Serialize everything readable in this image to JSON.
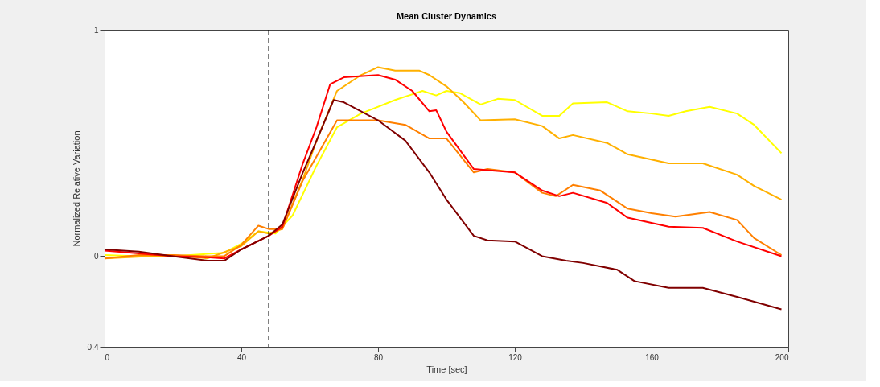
{
  "chart_data": {
    "type": "line",
    "title": "Mean Cluster Dynamics",
    "xlabel": "Time [sec]",
    "ylabel": "Normalized Relative Variation",
    "xlim": [
      0,
      200
    ],
    "xticks": [
      0,
      40,
      80,
      120,
      160,
      200
    ],
    "ylim": [
      -0.4,
      1
    ],
    "yticks": [
      -0.4,
      0,
      1
    ],
    "grid": false,
    "legend": false,
    "marker": "none",
    "line_style": "solid",
    "ref_lines": [
      {
        "axis": "x",
        "value": 48,
        "label": null,
        "color": "#000000",
        "line_style": "dashed"
      }
    ],
    "series": [
      {
        "color": "#ffff00",
        "x": [
          0,
          10,
          20,
          30,
          35,
          40,
          45,
          50,
          55,
          62,
          68,
          75,
          85,
          93,
          97,
          100,
          104,
          110,
          115,
          120,
          128,
          133,
          137,
          147,
          153,
          160,
          165,
          170,
          177,
          185,
          190,
          198
        ],
        "values": [
          0.005,
          0,
          0,
          0.01,
          0.015,
          0.055,
          0.11,
          0.1,
          0.18,
          0.4,
          0.57,
          0.63,
          0.69,
          0.73,
          0.71,
          0.73,
          0.72,
          0.67,
          0.695,
          0.69,
          0.62,
          0.62,
          0.675,
          0.68,
          0.64,
          0.63,
          0.62,
          0.64,
          0.66,
          0.63,
          0.58,
          0.455
        ]
      },
      {
        "color": "#ffb000",
        "x": [
          0,
          20,
          30,
          40,
          45,
          48,
          52,
          58,
          62,
          68,
          75,
          80,
          85,
          92,
          95,
          100,
          105,
          110,
          120,
          128,
          133,
          137,
          147,
          153,
          165,
          175,
          185,
          190,
          198
        ],
        "values": [
          -0.01,
          0.005,
          -0.01,
          0.045,
          0.11,
          0.1,
          0.12,
          0.34,
          0.51,
          0.73,
          0.8,
          0.835,
          0.82,
          0.82,
          0.8,
          0.75,
          0.68,
          0.6,
          0.605,
          0.575,
          0.52,
          0.535,
          0.5,
          0.45,
          0.41,
          0.41,
          0.36,
          0.31,
          0.25
        ]
      },
      {
        "color": "#ff8000",
        "x": [
          0,
          10,
          20,
          30,
          35,
          40,
          45,
          48,
          52,
          58,
          62,
          68,
          80,
          88,
          95,
          100,
          108,
          112,
          120,
          128,
          132,
          137,
          145,
          153,
          160,
          167,
          177,
          185,
          190,
          198
        ],
        "values": [
          -0.01,
          0.005,
          0.005,
          0,
          0,
          0.05,
          0.135,
          0.12,
          0.12,
          0.335,
          0.44,
          0.6,
          0.6,
          0.58,
          0.52,
          0.52,
          0.37,
          0.385,
          0.37,
          0.28,
          0.265,
          0.315,
          0.29,
          0.21,
          0.19,
          0.175,
          0.195,
          0.16,
          0.08,
          0.005
        ]
      },
      {
        "color": "#ff0000",
        "x": [
          0,
          20,
          30,
          35,
          40,
          48,
          52,
          58,
          62,
          66,
          70,
          80,
          85,
          90,
          95,
          97,
          100,
          108,
          112,
          120,
          128,
          133,
          137,
          147,
          153,
          165,
          175,
          185,
          198
        ],
        "values": [
          0.025,
          0,
          -0.005,
          -0.01,
          0.03,
          0.09,
          0.13,
          0.41,
          0.57,
          0.76,
          0.79,
          0.8,
          0.78,
          0.73,
          0.64,
          0.645,
          0.55,
          0.385,
          0.38,
          0.37,
          0.29,
          0.265,
          0.28,
          0.235,
          0.17,
          0.13,
          0.125,
          0.065,
          0
        ]
      },
      {
        "color": "#800000",
        "x": [
          0,
          10,
          20,
          30,
          35,
          40,
          48,
          52,
          58,
          62,
          67,
          70,
          80,
          88,
          95,
          100,
          108,
          112,
          120,
          128,
          135,
          140,
          150,
          155,
          165,
          175,
          185,
          198
        ],
        "values": [
          0.03,
          0.02,
          0,
          -0.02,
          -0.02,
          0.03,
          0.09,
          0.14,
          0.37,
          0.51,
          0.69,
          0.68,
          0.6,
          0.51,
          0.37,
          0.25,
          0.09,
          0.07,
          0.065,
          0,
          -0.02,
          -0.03,
          -0.06,
          -0.11,
          -0.14,
          -0.14,
          -0.18,
          -0.235
        ]
      }
    ]
  }
}
